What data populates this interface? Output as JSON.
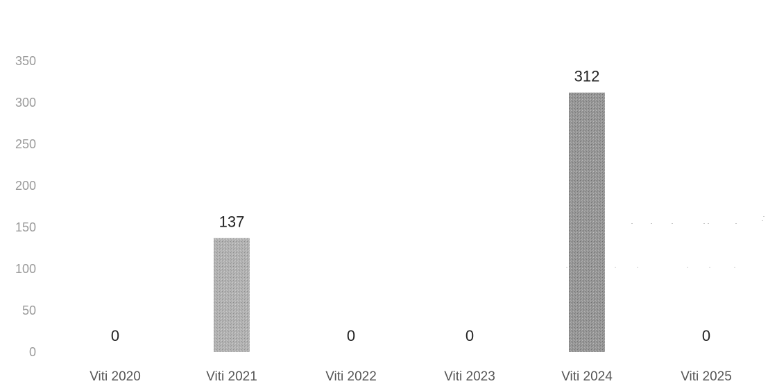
{
  "chart_data": {
    "type": "bar",
    "title": "",
    "xlabel": "",
    "ylabel": "",
    "categories": [
      "Viti 2020",
      "Viti 2021",
      "Viti 2022",
      "Viti 2023",
      "Viti 2024",
      "Viti 2025"
    ],
    "values": [
      0,
      137,
      0,
      0,
      312,
      0
    ],
    "data_labels": [
      "0",
      "137",
      "0",
      "0",
      "312",
      "0"
    ],
    "ylim": [
      0,
      350
    ],
    "yticks": [
      "0",
      "50",
      "100",
      "150",
      "200",
      "250",
      "300",
      "350"
    ],
    "grid": false,
    "legend": "none",
    "colors": {
      "bar": "#a9a9a9",
      "bar_highlight": "#8f8f8f"
    }
  }
}
